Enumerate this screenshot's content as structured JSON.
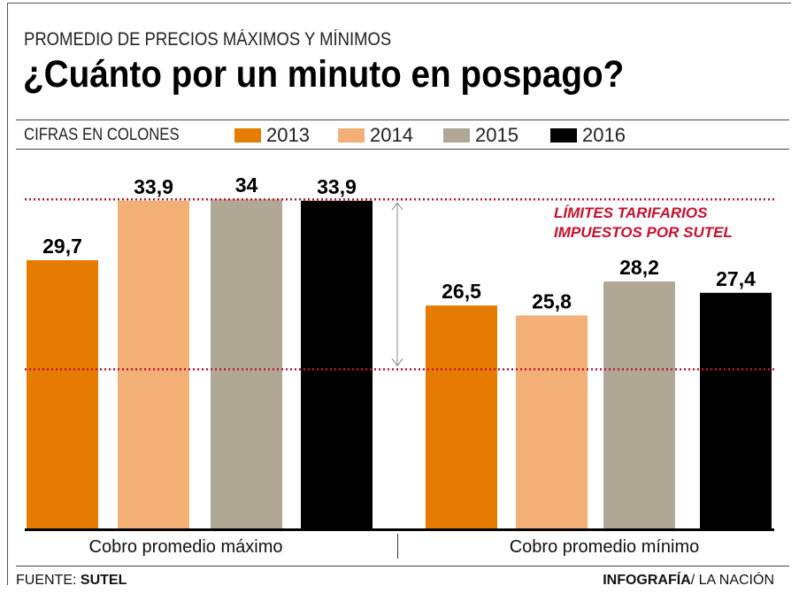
{
  "subtitle": "PROMEDIO DE PRECIOS MÁXIMOS Y MÍNIMOS",
  "title": "¿Cuánto por un minuto en pospago?",
  "units": "CIFRAS EN COLONES",
  "footer": {
    "source_label": "FUENTE:",
    "source": "SUTEL",
    "credit_bold": "INFOGRAFÍA",
    "credit": "/ LA NACIÓN"
  },
  "chart_data": {
    "type": "bar",
    "title": "¿Cuánto por un minuto en pospago?",
    "categories": [
      "Cobro promedio máximo",
      "Cobro promedio mínimo"
    ],
    "series": [
      {
        "name": "2013",
        "color": "#e57b00",
        "values": [
          29.7,
          26.5
        ],
        "labels": [
          "29,7",
          "26,5"
        ]
      },
      {
        "name": "2014",
        "color": "#f2b077",
        "values": [
          33.9,
          25.8
        ],
        "labels": [
          "33,9",
          "25,8"
        ]
      },
      {
        "name": "2015",
        "color": "#b0a795",
        "values": [
          34,
          28.2
        ],
        "labels": [
          "34",
          "28,2"
        ]
      },
      {
        "name": "2016",
        "color": "#000000",
        "values": [
          33.9,
          27.4
        ],
        "labels": [
          "33,9",
          "27,4"
        ]
      }
    ],
    "ylim": [
      10.7,
      34
    ],
    "legend": "top",
    "reference_lines": {
      "values": [
        22,
        34
      ],
      "color": "#c8102e",
      "style": "dotted"
    },
    "annotation": [
      "LÍMITES TARIFARIOS",
      "IMPUESTOS POR SUTEL"
    ]
  }
}
